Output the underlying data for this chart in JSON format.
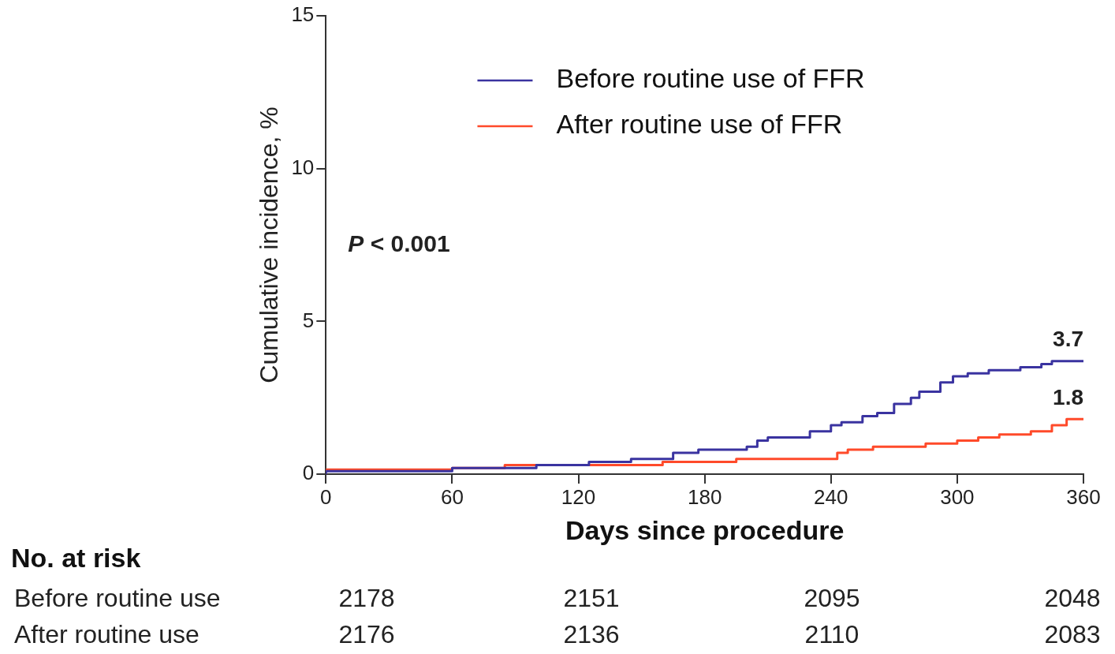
{
  "chart_data": {
    "type": "step",
    "xlabel": "Days since procedure",
    "ylabel": "Cumulative incidence, %",
    "xlim": [
      0,
      360
    ],
    "xticks": [
      0,
      60,
      120,
      180,
      240,
      300,
      360
    ],
    "ylim": [
      0,
      15
    ],
    "yticks": [
      0,
      5,
      10,
      15
    ],
    "grid": false,
    "legend": "top right",
    "marker": "none",
    "line_style": "solid",
    "series": [
      {
        "name": "Before routine use of FFR",
        "color": "#3a33a0",
        "x": [
          0,
          60,
          100,
          125,
          145,
          165,
          177,
          200,
          205,
          210,
          230,
          240,
          245,
          255,
          262,
          270,
          278,
          282,
          292,
          298,
          305,
          315,
          330,
          340,
          345,
          350,
          360
        ],
        "values": [
          0,
          0.1,
          0.2,
          0.3,
          0.4,
          0.5,
          0.7,
          0.8,
          0.9,
          1.1,
          1.2,
          1.4,
          1.6,
          1.7,
          1.9,
          2.0,
          2.3,
          2.5,
          2.7,
          3.0,
          3.2,
          3.3,
          3.4,
          3.5,
          3.6,
          3.7,
          3.7
        ]
      },
      {
        "name": "After routine use of FFR",
        "color": "#ff4a2a",
        "x": [
          0,
          60,
          85,
          100,
          160,
          195,
          215,
          243,
          248,
          260,
          285,
          300,
          310,
          320,
          335,
          345,
          352,
          360
        ],
        "values": [
          0.1,
          0.15,
          0.2,
          0.3,
          0.3,
          0.4,
          0.5,
          0.5,
          0.7,
          0.8,
          0.9,
          1.0,
          1.1,
          1.2,
          1.3,
          1.4,
          1.6,
          1.8
        ]
      }
    ],
    "annotations": [
      {
        "text": "3.7",
        "x": 360,
        "y": 3.7
      },
      {
        "text": "1.8",
        "x": 360,
        "y": 1.8
      },
      "P < 0.001",
      "No. at risk",
      "Before routine use",
      "2178",
      "2151",
      "2095",
      "2048",
      "After routine use",
      "2176",
      "2136",
      "2110",
      "2083"
    ]
  }
}
